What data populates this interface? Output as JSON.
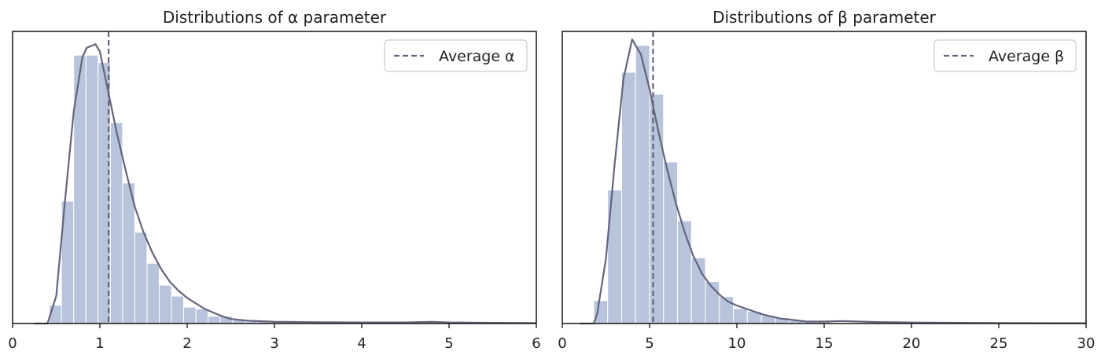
{
  "chart_data": [
    {
      "type": "bar",
      "title": "Distributions of α parameter",
      "xlabel": "",
      "ylabel": "",
      "xlim": [
        0,
        6
      ],
      "ylim": [
        0,
        1.6
      ],
      "xticks": [
        "0",
        "1",
        "2",
        "3",
        "4",
        "5",
        "6"
      ],
      "bar_color": "#b8c4dc",
      "line_color": "#64657c",
      "bins": [
        {
          "x0": 0.42,
          "x1": 0.56,
          "density": 0.1
        },
        {
          "x0": 0.56,
          "x1": 0.7,
          "density": 0.67
        },
        {
          "x0": 0.7,
          "x1": 0.84,
          "density": 1.47
        },
        {
          "x0": 0.84,
          "x1": 0.98,
          "density": 1.47
        },
        {
          "x0": 0.98,
          "x1": 1.12,
          "density": 1.43
        },
        {
          "x0": 1.12,
          "x1": 1.26,
          "density": 1.1
        },
        {
          "x0": 1.26,
          "x1": 1.4,
          "density": 0.77
        },
        {
          "x0": 1.4,
          "x1": 1.54,
          "density": 0.5
        },
        {
          "x0": 1.54,
          "x1": 1.68,
          "density": 0.33
        },
        {
          "x0": 1.68,
          "x1": 1.82,
          "density": 0.21
        },
        {
          "x0": 1.82,
          "x1": 1.96,
          "density": 0.15
        },
        {
          "x0": 1.96,
          "x1": 2.1,
          "density": 0.09
        },
        {
          "x0": 2.1,
          "x1": 2.24,
          "density": 0.08
        },
        {
          "x0": 2.24,
          "x1": 2.38,
          "density": 0.04
        },
        {
          "x0": 2.38,
          "x1": 2.52,
          "density": 0.04
        },
        {
          "x0": 2.52,
          "x1": 2.66,
          "density": 0.02
        },
        {
          "x0": 2.66,
          "x1": 2.8,
          "density": 0.01
        },
        {
          "x0": 2.8,
          "x1": 2.94,
          "density": 0.01
        },
        {
          "x0": 2.94,
          "x1": 3.08,
          "density": 0.01
        },
        {
          "x0": 3.08,
          "x1": 3.22,
          "density": 0.01
        }
      ],
      "kde": {
        "x": [
          0.25,
          0.4,
          0.5,
          0.6,
          0.7,
          0.8,
          0.85,
          0.9,
          0.95,
          1.0,
          1.1,
          1.2,
          1.3,
          1.4,
          1.5,
          1.6,
          1.7,
          1.8,
          1.9,
          2.0,
          2.1,
          2.2,
          2.3,
          2.4,
          2.5,
          2.7,
          3.0,
          3.5,
          4.0,
          4.5,
          4.8,
          5.0,
          5.5,
          6.0
        ],
        "y": [
          0.0,
          0.0,
          0.15,
          0.67,
          1.16,
          1.46,
          1.51,
          1.52,
          1.53,
          1.49,
          1.26,
          1.03,
          0.83,
          0.64,
          0.5,
          0.39,
          0.3,
          0.23,
          0.18,
          0.14,
          0.11,
          0.08,
          0.06,
          0.04,
          0.025,
          0.015,
          0.01,
          0.007,
          0.006,
          0.006,
          0.009,
          0.006,
          0.004,
          0.003
        ]
      },
      "mean": 1.1,
      "legend": {
        "label": "Average α",
        "position": "upper right",
        "line_style": "dashed"
      }
    },
    {
      "type": "bar",
      "title": "Distributions of β parameter",
      "xlabel": "",
      "ylabel": "",
      "xlim": [
        0,
        30
      ],
      "ylim": [
        0,
        0.293
      ],
      "xticks": [
        "0",
        "5",
        "10",
        "15",
        "20",
        "25",
        "30"
      ],
      "bar_color": "#b8c4dc",
      "line_color": "#64657c",
      "bins": [
        {
          "x0": 1.8,
          "x1": 2.6,
          "density": 0.023
        },
        {
          "x0": 2.6,
          "x1": 3.4,
          "density": 0.134
        },
        {
          "x0": 3.4,
          "x1": 4.2,
          "density": 0.252
        },
        {
          "x0": 4.2,
          "x1": 5.0,
          "density": 0.279
        },
        {
          "x0": 5.0,
          "x1": 5.8,
          "density": 0.23
        },
        {
          "x0": 5.8,
          "x1": 6.6,
          "density": 0.162
        },
        {
          "x0": 6.6,
          "x1": 7.4,
          "density": 0.103
        },
        {
          "x0": 7.4,
          "x1": 8.2,
          "density": 0.066
        },
        {
          "x0": 8.2,
          "x1": 9.0,
          "density": 0.042
        },
        {
          "x0": 9.0,
          "x1": 9.8,
          "density": 0.027
        },
        {
          "x0": 9.8,
          "x1": 10.6,
          "density": 0.015
        },
        {
          "x0": 10.6,
          "x1": 11.4,
          "density": 0.012
        },
        {
          "x0": 11.4,
          "x1": 12.2,
          "density": 0.008
        },
        {
          "x0": 12.2,
          "x1": 13.0,
          "density": 0.006
        },
        {
          "x0": 13.0,
          "x1": 13.8,
          "density": 0.003
        },
        {
          "x0": 13.8,
          "x1": 14.6,
          "density": 0.002
        },
        {
          "x0": 14.6,
          "x1": 15.4,
          "density": 0.002
        }
      ],
      "kde": {
        "x": [
          1.0,
          1.8,
          2.0,
          2.5,
          3.0,
          3.5,
          4.0,
          4.5,
          5.0,
          5.5,
          6.0,
          6.5,
          7.0,
          7.5,
          8.0,
          8.5,
          9.0,
          9.5,
          10.0,
          10.5,
          11.0,
          11.5,
          12.0,
          12.5,
          13.0,
          14.0,
          15.0,
          16.0,
          18.0,
          20.0,
          22.0,
          25.0,
          30.0
        ],
        "y": [
          0.0,
          0.0,
          0.01,
          0.065,
          0.16,
          0.245,
          0.285,
          0.27,
          0.235,
          0.193,
          0.155,
          0.121,
          0.092,
          0.068,
          0.05,
          0.038,
          0.029,
          0.022,
          0.018,
          0.015,
          0.012,
          0.009,
          0.007,
          0.005,
          0.004,
          0.002,
          0.002,
          0.0025,
          0.0015,
          0.001,
          0.0008,
          0.0005,
          0.0003
        ]
      },
      "mean": 5.2,
      "legend": {
        "label": "Average β",
        "position": "upper right",
        "line_style": "dashed"
      }
    }
  ]
}
